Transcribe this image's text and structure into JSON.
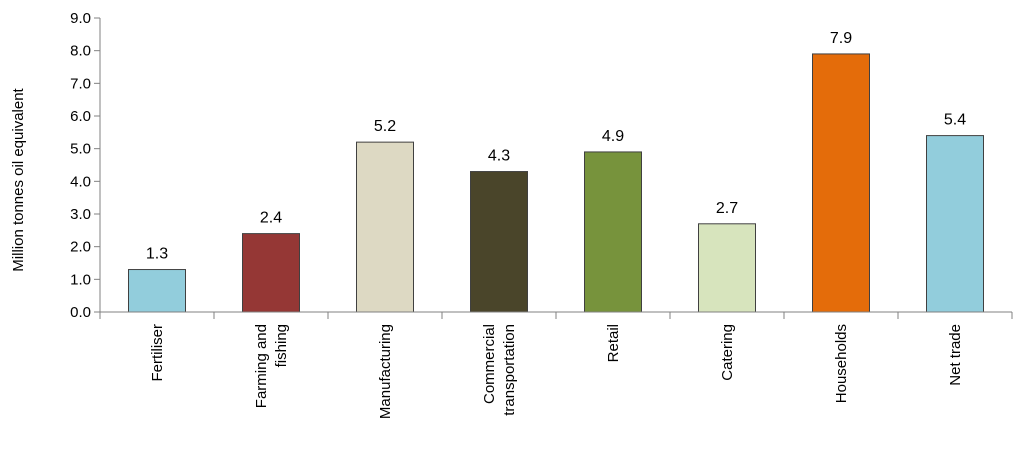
{
  "chart_data": {
    "type": "bar",
    "ylabel": "Million tonnes oil equivalent",
    "ylim": [
      0,
      9
    ],
    "ytick_step": 1,
    "ytick_labels": [
      "0.0",
      "1.0",
      "2.0",
      "3.0",
      "4.0",
      "5.0",
      "6.0",
      "7.0",
      "8.0",
      "9.0"
    ],
    "grid": false,
    "categories": [
      [
        "Fertiliser"
      ],
      [
        "Farming and",
        "fishing"
      ],
      [
        "Manufacturing"
      ],
      [
        "Commercial",
        "transportation"
      ],
      [
        "Retail"
      ],
      [
        "Catering"
      ],
      [
        "Households"
      ],
      [
        "Net trade"
      ]
    ],
    "values": [
      1.3,
      2.4,
      5.2,
      4.3,
      4.9,
      2.7,
      7.9,
      5.4
    ],
    "value_labels": [
      "1.3",
      "2.4",
      "5.2",
      "4.3",
      "4.9",
      "2.7",
      "7.9",
      "5.4"
    ],
    "colors": [
      "#92cddc",
      "#953735",
      "#ddd9c3",
      "#4a452a",
      "#77933c",
      "#d7e4bd",
      "#e46c0a",
      "#92cddc"
    ]
  }
}
